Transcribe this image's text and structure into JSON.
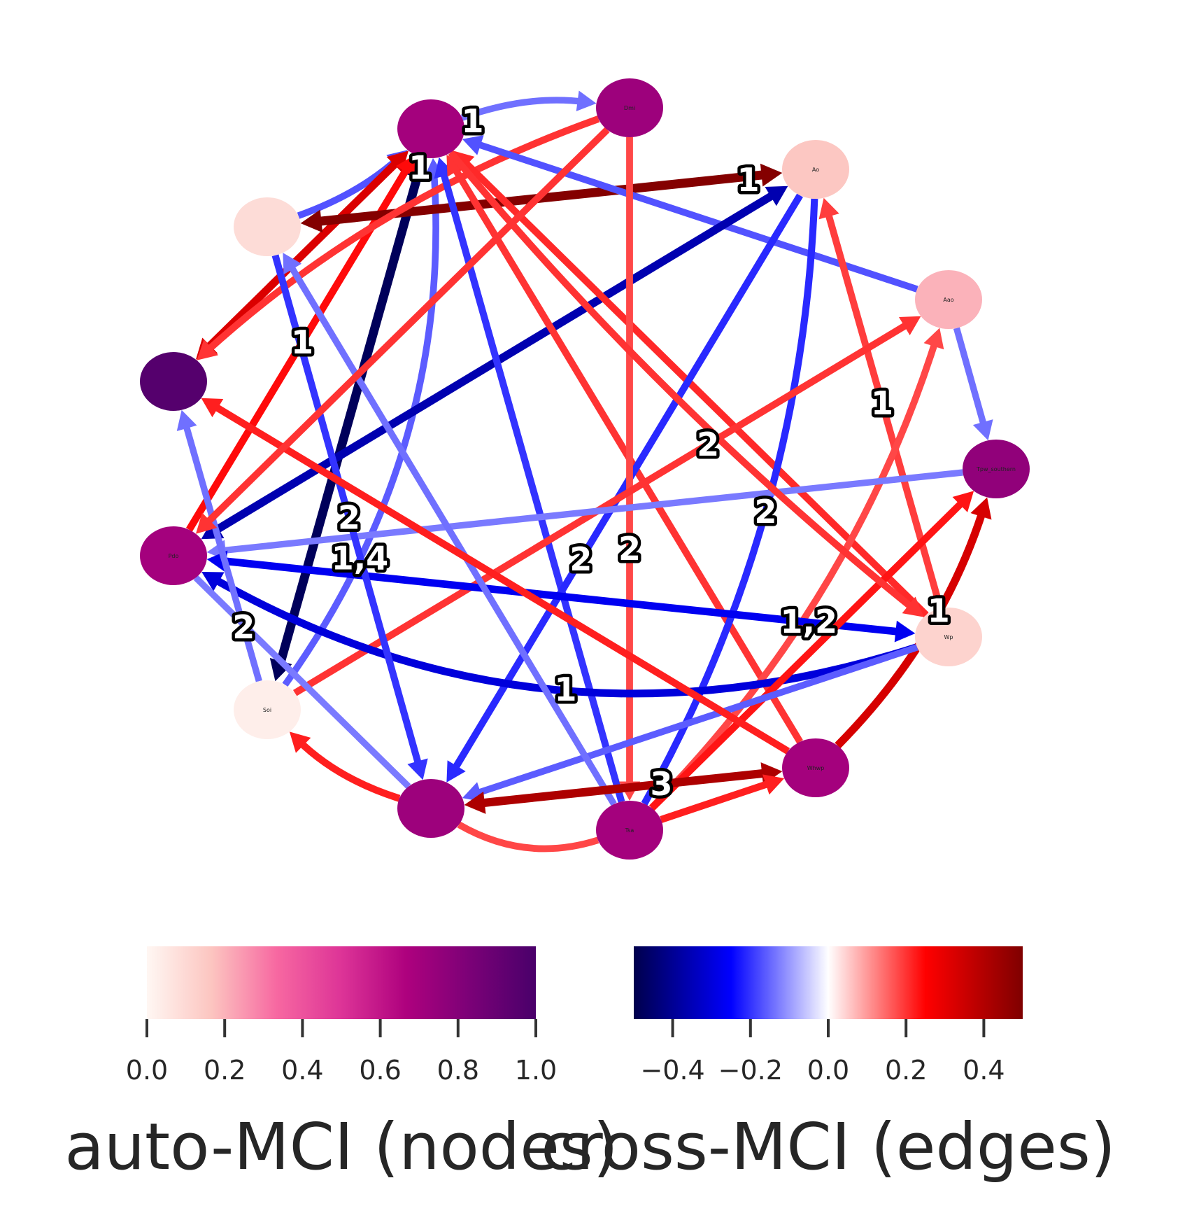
{
  "nodes": [
    {
      "id": "Dmi",
      "label": "Dmi",
      "value": 0.72
    },
    {
      "id": "n1",
      "label": "",
      "value": 0.7
    },
    {
      "id": "Ao",
      "label": "Ao",
      "value": 0.16
    },
    {
      "id": "n3",
      "label": "",
      "value": 0.09
    },
    {
      "id": "Aao",
      "label": "Aao",
      "value": 0.2
    },
    {
      "id": "n5",
      "label": "",
      "value": 0.96
    },
    {
      "id": "Tpw_southern",
      "label": "Tpw_southern",
      "value": 0.76
    },
    {
      "id": "Pdo",
      "label": "Pdo",
      "value": 0.7
    },
    {
      "id": "Wp",
      "label": "Wp",
      "value": 0.12
    },
    {
      "id": "Soi",
      "label": "Soi",
      "value": 0.03
    },
    {
      "id": "Whwp",
      "label": "Whwp",
      "value": 0.7
    },
    {
      "id": "n11",
      "label": "",
      "value": 0.72
    },
    {
      "id": "Tsa",
      "label": "Tsa",
      "value": 0.7
    }
  ],
  "edges": [
    {
      "source": "n1",
      "target": "Dmi",
      "value": -0.14,
      "label": "1",
      "arrow": "target"
    },
    {
      "source": "n3",
      "target": "n1",
      "value": -0.17,
      "label": "",
      "arrow": "target"
    },
    {
      "source": "n5",
      "target": "n1",
      "value": 0.32,
      "label": "",
      "arrow": "both"
    },
    {
      "source": "Soi",
      "target": "n1",
      "value": -0.48,
      "label": "1",
      "arrow": "both"
    },
    {
      "source": "Pdo",
      "target": "n1",
      "value": 0.24,
      "label": "1",
      "arrow": "target"
    },
    {
      "source": "Soi",
      "target": "n1",
      "value": -0.16,
      "label": "1,4",
      "arrow": "target"
    },
    {
      "source": "n3",
      "target": "Ao",
      "value": 0.49,
      "label": "1",
      "arrow": "both"
    },
    {
      "source": "Dmi",
      "target": "n5",
      "value": 0.2,
      "label": "",
      "arrow": "target"
    },
    {
      "source": "Aao",
      "target": "n1",
      "value": -0.17,
      "label": "",
      "arrow": "target"
    },
    {
      "source": "Pdo",
      "target": "Ao",
      "value": -0.36,
      "label": "",
      "arrow": "both"
    },
    {
      "source": "Tsa",
      "target": "n1",
      "value": -0.2,
      "label": "",
      "arrow": "target"
    },
    {
      "source": "Wp",
      "target": "n1",
      "value": 0.21,
      "label": "",
      "arrow": "target"
    },
    {
      "source": "Whwp",
      "target": "n1",
      "value": 0.2,
      "label": "",
      "arrow": "target"
    },
    {
      "source": "Ao",
      "target": "n11",
      "value": -0.21,
      "label": "2",
      "arrow": "target"
    },
    {
      "source": "Ao",
      "target": "Tsa",
      "value": -0.21,
      "label": "2",
      "arrow": "none"
    },
    {
      "source": "Wp",
      "target": "Ao",
      "value": 0.19,
      "label": "1",
      "arrow": "target"
    },
    {
      "source": "Dmi",
      "target": "Tsa",
      "value": 0.18,
      "label": "2",
      "arrow": "target"
    },
    {
      "source": "Aao",
      "target": "Tpw_southern",
      "value": -0.14,
      "label": "",
      "arrow": "target"
    },
    {
      "source": "Soi",
      "target": "Aao",
      "value": 0.2,
      "label": "2",
      "arrow": "target"
    },
    {
      "source": "Tsa",
      "target": "Aao",
      "value": 0.18,
      "label": "",
      "arrow": "target"
    },
    {
      "source": "Tpw_southern",
      "target": "Pdo",
      "value": -0.13,
      "label": "",
      "arrow": "target"
    },
    {
      "source": "Pdo",
      "target": "Wp",
      "value": -0.27,
      "label": "1,2",
      "arrow": "both"
    },
    {
      "source": "Wp",
      "target": "Pdo",
      "value": -0.3,
      "label": "1",
      "arrow": "target"
    },
    {
      "source": "Whwp",
      "target": "Tpw_southern",
      "value": 0.33,
      "label": "1",
      "arrow": "target"
    },
    {
      "source": "Tsa",
      "target": "Tpw_southern",
      "value": 0.23,
      "label": "",
      "arrow": "target"
    },
    {
      "source": "Wp",
      "target": "n11",
      "value": -0.16,
      "label": "",
      "arrow": "target"
    },
    {
      "source": "n3",
      "target": "n11",
      "value": -0.2,
      "label": "2",
      "arrow": "target"
    },
    {
      "source": "Tsa",
      "target": "n3",
      "value": -0.14,
      "label": "",
      "arrow": "target"
    },
    {
      "source": "Whwp",
      "target": "n5",
      "value": 0.22,
      "label": "",
      "arrow": "target"
    },
    {
      "source": "Soi",
      "target": "n5",
      "value": -0.14,
      "label": "2",
      "arrow": "target"
    },
    {
      "source": "n11",
      "target": "Pdo",
      "value": -0.13,
      "label": "",
      "arrow": "none"
    },
    {
      "source": "n11",
      "target": "Soi",
      "value": 0.22,
      "label": "",
      "arrow": "target"
    },
    {
      "source": "n11",
      "target": "Whwp",
      "value": 0.41,
      "label": "3",
      "arrow": "both"
    },
    {
      "source": "Tsa",
      "target": "Whwp",
      "value": 0.22,
      "label": "",
      "arrow": "target"
    },
    {
      "source": "n11",
      "target": "Tsa",
      "value": 0.18,
      "label": "",
      "arrow": "none"
    },
    {
      "source": "Dmi",
      "target": "Pdo",
      "value": 0.2,
      "label": "",
      "arrow": "target"
    },
    {
      "source": "n1",
      "target": "Wp",
      "value": 0.2,
      "label": "",
      "arrow": "target"
    }
  ],
  "colorbars": [
    {
      "title": "auto-MCI (nodes)",
      "range": [
        0.0,
        1.0
      ],
      "ticks": [
        "0.0",
        "0.2",
        "0.4",
        "0.6",
        "0.8",
        "1.0"
      ],
      "tick_values": [
        0.0,
        0.2,
        0.4,
        0.6,
        0.8,
        1.0
      ],
      "colormap": "RdPu",
      "stops": [
        "#fff7f3",
        "#fcc5c0",
        "#f768a1",
        "#dd3497",
        "#ae017e",
        "#7a0177",
        "#49006a"
      ]
    },
    {
      "title": "cross-MCI (edges)",
      "range": [
        -0.5,
        0.5
      ],
      "ticks": [
        "−0.4",
        "−0.2",
        "0.0",
        "0.2",
        "0.4"
      ],
      "tick_values": [
        -0.4,
        -0.2,
        0.0,
        0.2,
        0.4
      ],
      "colormap": "seismic",
      "stops": [
        "#00004c",
        "#0000ff",
        "#ffffff",
        "#ff0000",
        "#7f0000"
      ]
    }
  ]
}
